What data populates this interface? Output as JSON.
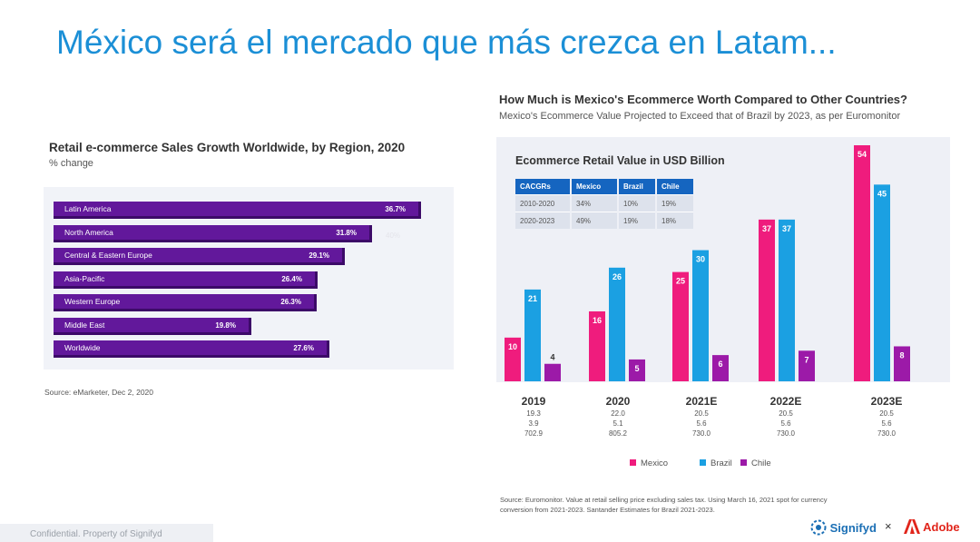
{
  "slide": {
    "title": "México será el mercado que más crezca en Latam...",
    "footer": "Confidential. Property of Signifyd",
    "brand_signifyd": "Signifyd",
    "brand_x": "×",
    "brand_adobe": "Adobe"
  },
  "chart_data": [
    {
      "type": "bar",
      "orientation": "horizontal",
      "title": "Retail e-commerce Sales Growth Worldwide, by Region, 2020",
      "subtitle": "% change",
      "categories": [
        "Latin America",
        "North America",
        "Central & Eastern Europe",
        "Asia-Pacific",
        "Western Europe",
        "Middle East",
        "Worldwide"
      ],
      "values": [
        36.7,
        31.8,
        29.1,
        26.4,
        26.3,
        19.8,
        27.6
      ],
      "value_labels": [
        "36.7%",
        "31.8%",
        "29.1%",
        "26.4%",
        "26.3%",
        "19.8%",
        "27.6%"
      ],
      "xlim": [
        0,
        40
      ],
      "color": "#62189b",
      "ghost_label": "40%",
      "source": "Source: eMarketer, Dec 2, 2020"
    },
    {
      "type": "bar",
      "title": "How Much is Mexico's Ecommerce Worth Compared to Other Countries?",
      "subtitle": "Mexico's Ecommerce Value Projected to Exceed that of Brazil by 2023, as per Euromonitor",
      "inner_title": "Ecommerce Retail Value in USD Billion",
      "categories": [
        "2019",
        "2020",
        "2021E",
        "2022E",
        "2023E"
      ],
      "series": [
        {
          "name": "Mexico",
          "color": "#ef1c7d",
          "values": [
            10,
            16,
            25,
            37,
            54
          ]
        },
        {
          "name": "Brazil",
          "color": "#1ba0e2",
          "values": [
            21,
            26,
            30,
            37,
            45
          ]
        },
        {
          "name": "Chile",
          "color": "#9c1aa8",
          "values": [
            4,
            5,
            6,
            7,
            8
          ]
        }
      ],
      "ylim": [
        0,
        54
      ],
      "category_stats": [
        [
          "19.3",
          "3.9",
          "702.9"
        ],
        [
          "22.0",
          "5.1",
          "805.2"
        ],
        [
          "20.5",
          "5.6",
          "730.0"
        ],
        [
          "20.5",
          "5.6",
          "730.0"
        ],
        [
          "20.5",
          "5.6",
          "730.0"
        ]
      ],
      "cagr_table": {
        "headers": [
          "CACGRs",
          "Mexico",
          "Brazil",
          "Chile"
        ],
        "rows": [
          [
            "2010-2020",
            "34%",
            "10%",
            "19%"
          ],
          [
            "2020-2023",
            "49%",
            "19%",
            "18%"
          ]
        ]
      },
      "legend": [
        "Mexico",
        "Brazil",
        "Chile"
      ],
      "legend_position": "bottom",
      "source": "Source: Euromonitor. Value at retail selling price excluding sales tax. Using March 16, 2021 spot for currency conversion from 2021-2023. Santander Estimates for Brazil 2021-2023."
    }
  ],
  "colors": {
    "title_blue": "#1b8fd6",
    "header_blue": "#1565c0",
    "signifyd_blue": "#1b6fb5",
    "adobe_red": "#e1251b"
  }
}
